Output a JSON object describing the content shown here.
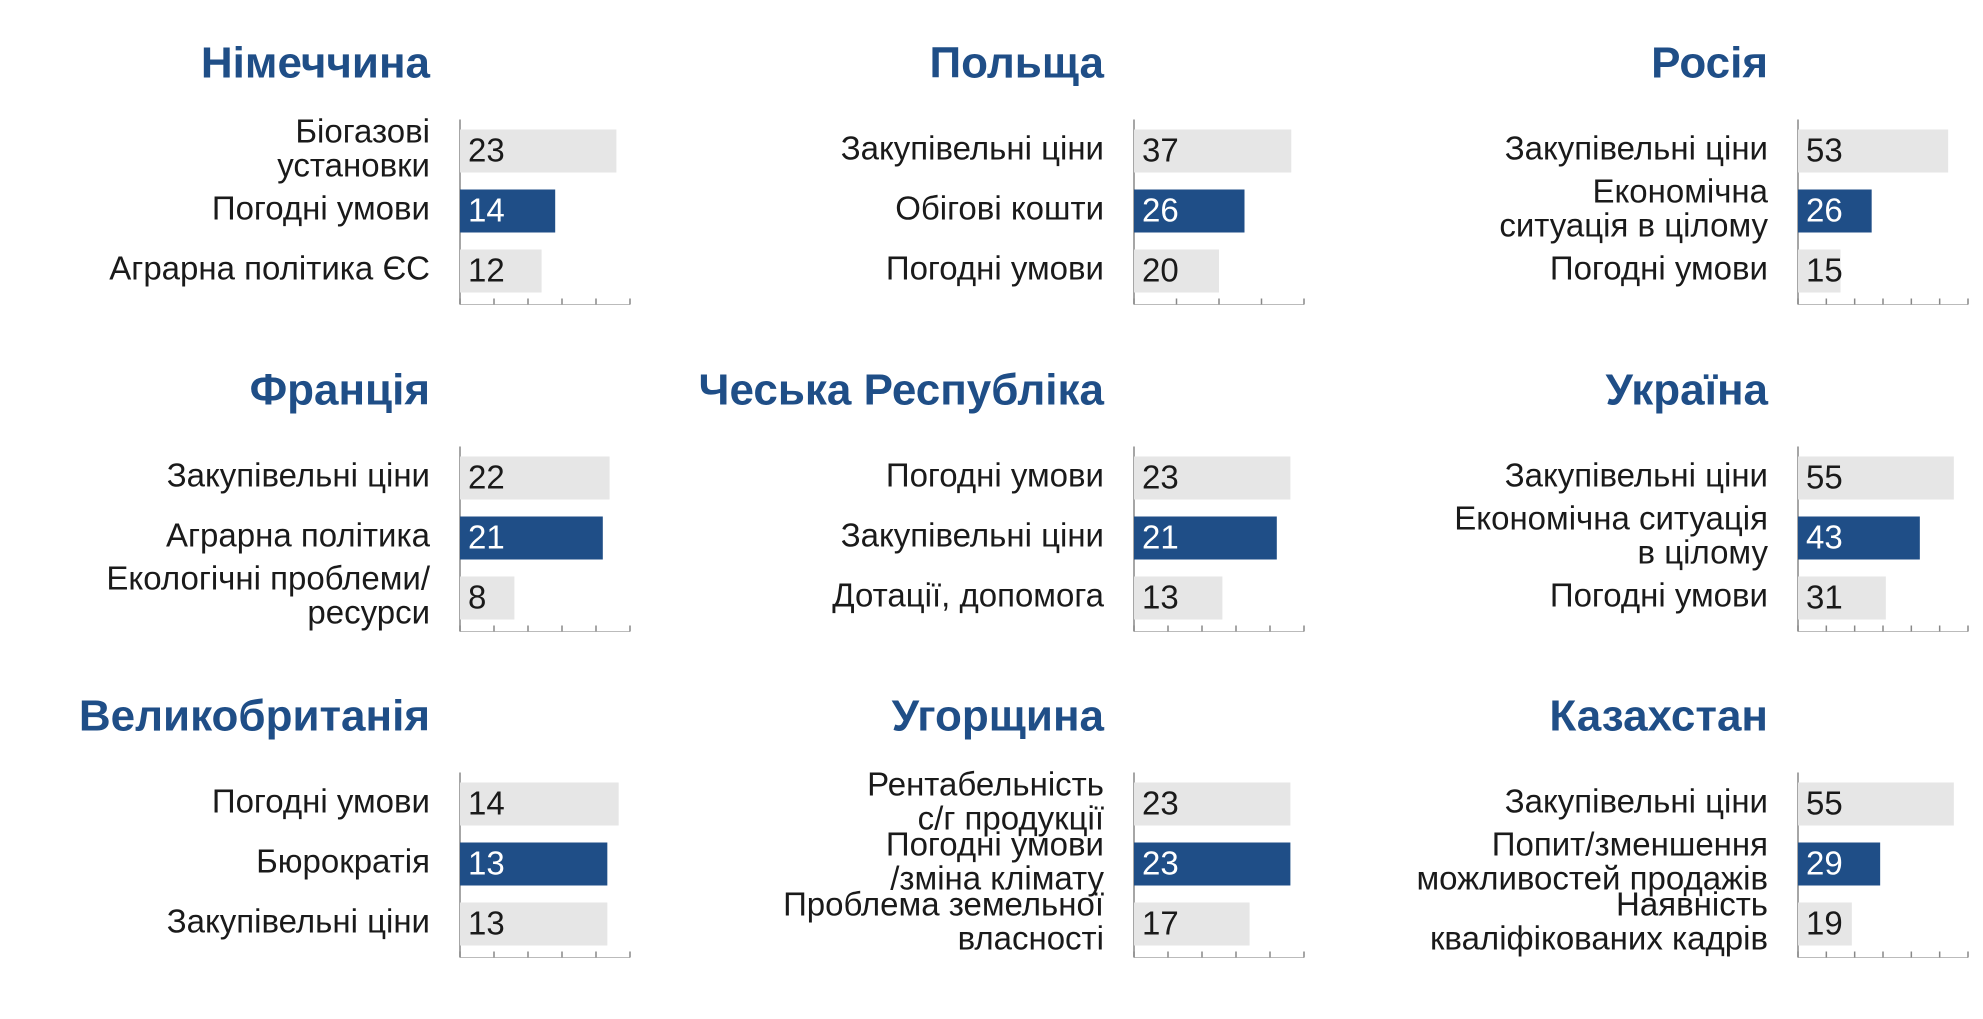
{
  "chart_data": [
    {
      "type": "bar",
      "title": "Німеччина",
      "categories": [
        [
          "Біогазові",
          "установки"
        ],
        [
          "Погодні умови"
        ],
        [
          "Аграрна політика ЄС"
        ]
      ],
      "values": [
        23,
        14,
        12
      ],
      "colors": [
        "#e6e6e6",
        "#1f4e87",
        "#e6e6e6"
      ],
      "xlim": [
        0,
        25
      ],
      "xticks": [
        0,
        5,
        10,
        15,
        20,
        25
      ]
    },
    {
      "type": "bar",
      "title": "Польща",
      "categories": [
        [
          "Закупівельні ціни"
        ],
        [
          "Обігові кошти"
        ],
        [
          "Погодні умови"
        ]
      ],
      "values": [
        37,
        26,
        20
      ],
      "colors": [
        "#e6e6e6",
        "#1f4e87",
        "#e6e6e6"
      ],
      "xlim": [
        0,
        40
      ],
      "xticks": [
        0,
        10,
        20,
        30,
        40
      ]
    },
    {
      "type": "bar",
      "title": "Росія",
      "categories": [
        [
          "Закупівельні ціни"
        ],
        [
          "Економічна",
          "ситуація в цілому"
        ],
        [
          "Погодні умови"
        ]
      ],
      "values": [
        53,
        26,
        15
      ],
      "colors": [
        "#e6e6e6",
        "#1f4e87",
        "#e6e6e6"
      ],
      "xlim": [
        0,
        60
      ],
      "xticks": [
        0,
        10,
        20,
        30,
        40,
        50,
        60
      ]
    },
    {
      "type": "bar",
      "title": "Франція",
      "categories": [
        [
          "Закупівельні ціни"
        ],
        [
          "Аграрна політика"
        ],
        [
          "Екологічні проблеми/",
          "ресурси"
        ]
      ],
      "values": [
        22,
        21,
        8
      ],
      "colors": [
        "#e6e6e6",
        "#1f4e87",
        "#e6e6e6"
      ],
      "xlim": [
        0,
        25
      ],
      "xticks": [
        0,
        5,
        10,
        15,
        20,
        25
      ]
    },
    {
      "type": "bar",
      "title": "Чеська Республіка",
      "categories": [
        [
          "Погодні умови"
        ],
        [
          "Закупівельні ціни"
        ],
        [
          "Дотації, допомога"
        ]
      ],
      "values": [
        23,
        21,
        13
      ],
      "colors": [
        "#e6e6e6",
        "#1f4e87",
        "#e6e6e6"
      ],
      "xlim": [
        0,
        25
      ],
      "xticks": [
        0,
        5,
        10,
        15,
        20,
        25
      ]
    },
    {
      "type": "bar",
      "title": "Україна",
      "categories": [
        [
          "Закупівельні ціни"
        ],
        [
          "Економічна ситуація",
          "в цілому"
        ],
        [
          "Погодні умови"
        ]
      ],
      "values": [
        55,
        43,
        31
      ],
      "colors": [
        "#e6e6e6",
        "#1f4e87",
        "#e6e6e6"
      ],
      "xlim": [
        0,
        60
      ],
      "xticks": [
        0,
        10,
        20,
        30,
        40,
        50,
        60
      ]
    },
    {
      "type": "bar",
      "title": "Великобританія",
      "categories": [
        [
          "Погодні умови"
        ],
        [
          "Бюрократія"
        ],
        [
          "Закупівельні ціни"
        ]
      ],
      "values": [
        14,
        13,
        13
      ],
      "colors": [
        "#e6e6e6",
        "#1f4e87",
        "#e6e6e6"
      ],
      "xlim": [
        0,
        15
      ],
      "xticks": [
        0,
        3,
        6,
        9,
        12,
        15
      ]
    },
    {
      "type": "bar",
      "title": "Угорщина",
      "categories": [
        [
          "Рентабельність",
          "с/г продукції"
        ],
        [
          "Погодні умови",
          "/зміна клімату"
        ],
        [
          "Проблема земельної",
          "власності"
        ]
      ],
      "values": [
        23,
        23,
        17
      ],
      "colors": [
        "#e6e6e6",
        "#1f4e87",
        "#e6e6e6"
      ],
      "xlim": [
        0,
        25
      ],
      "xticks": [
        0,
        5,
        10,
        15,
        20,
        25
      ]
    },
    {
      "type": "bar",
      "title": "Казахстан",
      "categories": [
        [
          "Закупівельні ціни"
        ],
        [
          "Попит/зменшення",
          "можливостей продажів"
        ],
        [
          "Наявність",
          "кваліфікованих кадрів"
        ]
      ],
      "values": [
        55,
        29,
        19
      ],
      "colors": [
        "#e6e6e6",
        "#1f4e87",
        "#e6e6e6"
      ],
      "xlim": [
        0,
        60
      ],
      "xticks": [
        0,
        10,
        20,
        30,
        40,
        50,
        60
      ]
    }
  ]
}
